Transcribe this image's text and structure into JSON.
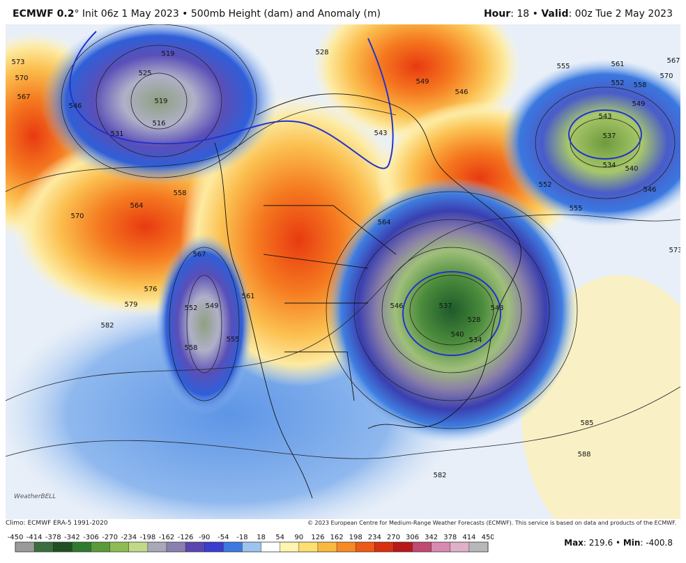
{
  "header": {
    "model": "ECMWF 0.2",
    "init": "° Init 06z 1 May 2023 • 500mb Height (dam) and Anomaly (m)",
    "hour_label": "Hour",
    "hour_value": ": 18 • ",
    "valid_label": "Valid",
    "valid_value": ": 00z Tue 2 May 2023"
  },
  "map": {
    "logo": "WeatherBELL",
    "contour_labels": [
      519,
      525,
      516,
      519,
      531,
      546,
      573,
      570,
      567,
      528,
      549,
      546,
      555,
      561,
      567,
      570,
      564,
      552,
      558,
      549,
      543,
      537,
      534,
      540,
      546,
      552,
      555,
      573,
      558,
      564,
      570,
      567,
      561,
      576,
      579,
      582,
      552,
      549,
      558,
      555,
      537,
      540,
      543,
      546,
      528,
      534,
      582,
      585,
      588,
      543
    ]
  },
  "footer": {
    "climo": "Climo: ECMWF ERA-5 1991-2020",
    "copyright": "© 2023 European Centre for Medium-Range Weather Forecasts (ECMWF). This service is based on data and products of the ECMWF.",
    "max_label": "Max",
    "max_value": ": 219.6 • ",
    "min_label": "Min",
    "min_value": ": -400.8"
  },
  "colorbar": {
    "ticks": [
      -450,
      -414,
      -378,
      -342,
      -306,
      -270,
      -234,
      -198,
      -162,
      -126,
      -90,
      -54,
      -18,
      18,
      54,
      90,
      126,
      162,
      198,
      234,
      270,
      306,
      342,
      378,
      414,
      450
    ]
  }
}
